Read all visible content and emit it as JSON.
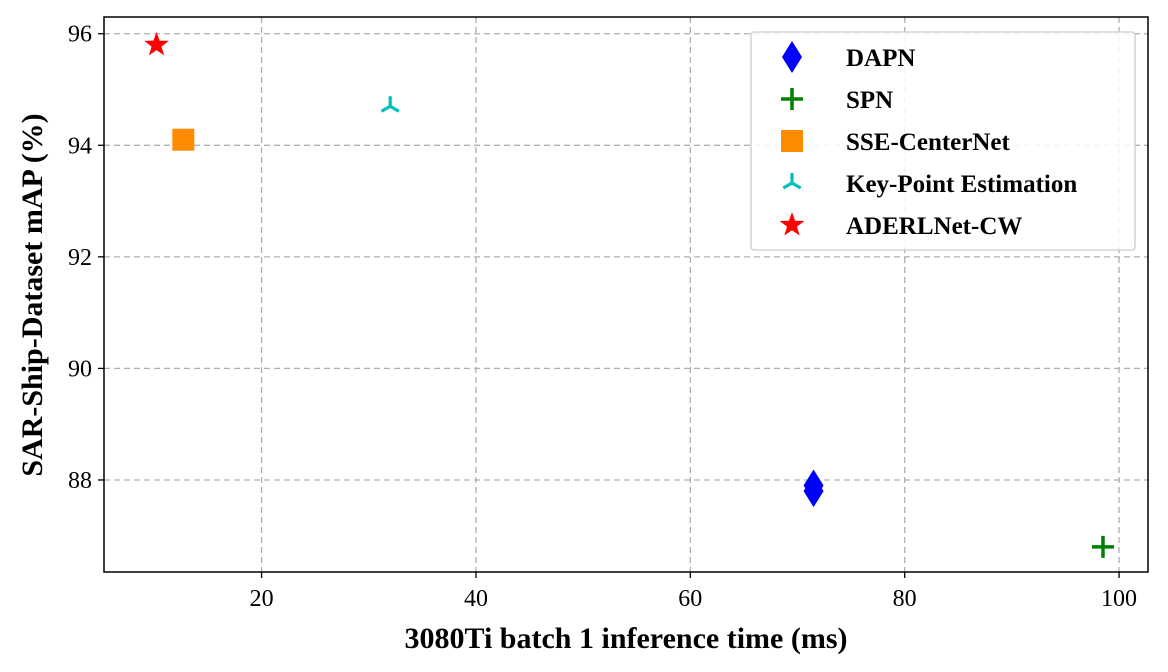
{
  "chart_data": {
    "type": "scatter",
    "title": "",
    "xlabel": "3080Ti batch 1 inference time (ms)",
    "ylabel": "SAR-Ship-Dataset mAP (%)",
    "xlim": [
      5.3,
      102.7
    ],
    "ylim": [
      86.35,
      96.3
    ],
    "xticks": [
      20,
      40,
      60,
      80,
      100
    ],
    "yticks": [
      88,
      90,
      92,
      94,
      96
    ],
    "grid": true,
    "legend_position": "top-right",
    "series": [
      {
        "name": "DAPN",
        "marker": "thin-diamond",
        "color": "#0000ff",
        "points": [
          {
            "x": 71.5,
            "y": 87.9
          },
          {
            "x": 71.5,
            "y": 87.8
          }
        ]
      },
      {
        "name": "SPN",
        "marker": "plus",
        "color": "#008000",
        "points": [
          {
            "x": 98.5,
            "y": 86.8
          }
        ]
      },
      {
        "name": "SSE-CenterNet",
        "marker": "square",
        "color": "#ff8c00",
        "points": [
          {
            "x": 12.7,
            "y": 94.1
          }
        ]
      },
      {
        "name": "Key-Point Estimation",
        "marker": "tri-down",
        "color": "#00bfbf",
        "points": [
          {
            "x": 32.0,
            "y": 94.7
          }
        ]
      },
      {
        "name": "ADERLNet-CW",
        "marker": "star",
        "color": "#ff0000",
        "points": [
          {
            "x": 10.2,
            "y": 95.8
          }
        ]
      }
    ]
  }
}
